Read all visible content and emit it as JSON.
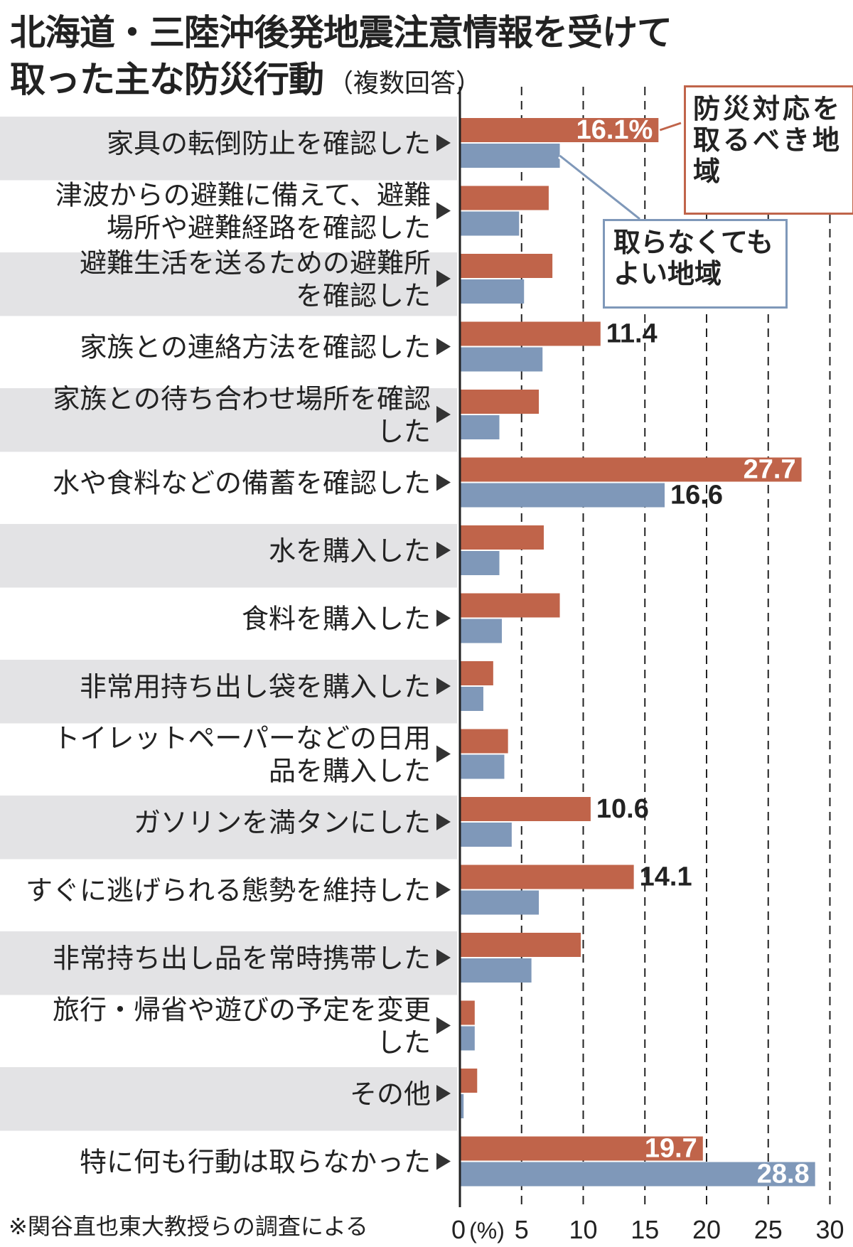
{
  "title": {
    "line1": "北海道・三陸沖後発地震注意情報を受けて",
    "line2": "取った主な防災行動",
    "line2_suffix": "（複数回答）"
  },
  "legend": {
    "series_a": "防災対応を取るべき地域",
    "series_b": "取らなくてもよい地域"
  },
  "footnote": "※関谷直也東大教授らの調査による",
  "colors": {
    "series_a": "#c0644a",
    "series_b": "#7f98b9",
    "stripe": "#e3e3e5",
    "grid": "#222222"
  },
  "chart_data": {
    "type": "bar",
    "orientation": "horizontal",
    "unit": "%",
    "xlim": [
      0,
      30
    ],
    "xticks": [
      "0",
      "5",
      "10",
      "15",
      "20",
      "25",
      "30"
    ],
    "unit_label": "(%)",
    "categories": [
      [
        "家具の転倒防止を確認した"
      ],
      [
        "津波からの避難に備えて、避難",
        "場所や避難経路を確認した"
      ],
      [
        "避難生活を送るための避難所",
        "を確認した"
      ],
      [
        "家族との連絡方法を確認した"
      ],
      [
        "家族との待ち合わせ場所を確認",
        "した"
      ],
      [
        "水や食料などの備蓄を確認した"
      ],
      [
        "水を購入した"
      ],
      [
        "食料を購入した"
      ],
      [
        "非常用持ち出し袋を購入した"
      ],
      [
        "トイレットペーパーなどの日用",
        "品を購入した"
      ],
      [
        "ガソリンを満タンにした"
      ],
      [
        "すぐに逃げられる態勢を維持した"
      ],
      [
        "非常持ち出し品を常時携帯した"
      ],
      [
        "旅行・帰省や遊びの予定を変更",
        "した"
      ],
      [
        "その他"
      ],
      [
        "特に何も行動は取らなかった"
      ]
    ],
    "series": [
      {
        "name": "防災対応を取るべき地域",
        "values": [
          16.1,
          7.2,
          7.5,
          11.4,
          6.4,
          27.7,
          6.8,
          8.1,
          2.7,
          3.9,
          10.6,
          14.1,
          9.8,
          1.2,
          1.4,
          19.7
        ],
        "labels": [
          "16.1%",
          null,
          null,
          "11.4",
          null,
          "27.7",
          null,
          null,
          null,
          null,
          "10.6",
          "14.1",
          null,
          null,
          null,
          "19.7"
        ]
      },
      {
        "name": "取らなくてもよい地域",
        "values": [
          8.1,
          4.8,
          5.2,
          6.7,
          3.2,
          16.6,
          3.2,
          3.4,
          1.9,
          3.6,
          4.2,
          6.4,
          5.8,
          1.2,
          0.3,
          28.8
        ],
        "labels": [
          null,
          null,
          null,
          null,
          null,
          "16.6",
          null,
          null,
          null,
          null,
          null,
          null,
          null,
          null,
          null,
          "28.8"
        ]
      }
    ]
  }
}
